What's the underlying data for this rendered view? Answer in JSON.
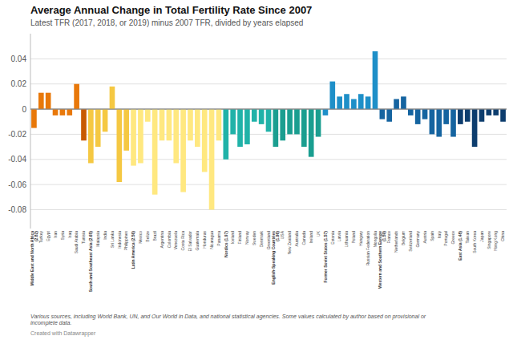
{
  "chart_data": {
    "type": "bar",
    "title": "Average Annual Change in Total Fertility Rate Since 2007",
    "subtitle": "Latest TFR (2017, 2018, or 2019) minus 2007 TFR, divided by years elapsed",
    "annotations": [
      "Various sources, including World Bank, UN, and Our World in Data, and national statistical agencies. Some values calculated by author based on provisional or\nincomplete data.",
      "Created with Datawrapper"
    ],
    "categories": [
      "Middle East and North Africa\n(2.82)",
      "Turkey",
      "Egypt",
      "Iran",
      "Syria",
      "Iraq",
      "Saudi Arabia",
      "Tunisia",
      "South and Southeast Asia (2.65)",
      "Malaysia",
      "India",
      "Sri Lanka",
      "Indonesia",
      "Philippines",
      "Latin America (2.56)",
      "Mexico",
      "Belize",
      "Brazil",
      "Argentina",
      "Colombia",
      "Venezuela",
      "Costa Rica",
      "El Salvador",
      "Guatemala",
      "Honduras",
      "Nicaragua",
      "Panama",
      "Nordics (1.97)",
      "Iceland",
      "Finland",
      "Norway",
      "Sweden",
      "Denmark",
      "Greenland",
      "English-Speaking Countries\n(1.96)",
      "USA",
      "New Zealand",
      "Australia",
      "Canada",
      "Ireland",
      "UK",
      "Former Soviet States (1.57)",
      "Estonia",
      "Latvia",
      "Lithuania",
      "Poland",
      "Hungary",
      "Russian Federation",
      "Mongolia",
      "Western and Southern Europe\n(1.59)",
      "France",
      "Netherlands",
      "Belgium",
      "Switzerland",
      "Germany",
      "Austria",
      "Spain",
      "Italy",
      "Portugal",
      "Greece",
      "East Asia (1.48)",
      "Taiwan",
      "South Korea",
      "Japan",
      "Singapore",
      "Hong Kong",
      "China"
    ],
    "values": [
      -0.015,
      0.013,
      0.013,
      -0.005,
      -0.005,
      -0.005,
      0.02,
      -0.025,
      -0.043,
      -0.03,
      -0.018,
      0.018,
      -0.058,
      -0.033,
      -0.045,
      -0.043,
      -0.01,
      -0.068,
      -0.025,
      -0.025,
      -0.043,
      -0.066,
      -0.025,
      -0.03,
      -0.05,
      -0.08,
      -0.025,
      -0.04,
      -0.02,
      -0.03,
      -0.028,
      -0.01,
      -0.012,
      -0.018,
      -0.03,
      -0.025,
      -0.02,
      -0.02,
      -0.03,
      -0.038,
      -0.022,
      -0.005,
      0.022,
      0.01,
      0.012,
      0.008,
      0.012,
      0.01,
      0.046,
      -0.008,
      -0.01,
      0.008,
      0.01,
      -0.005,
      -0.012,
      -0.008,
      -0.02,
      -0.022,
      -0.012,
      -0.022,
      -0.012,
      -0.01,
      -0.03,
      -0.01,
      -0.005,
      -0.005,
      -0.01
    ],
    "colors": [
      "#e8780a",
      "#e8780a",
      "#e8780a",
      "#e8780a",
      "#e8780a",
      "#e8780a",
      "#e8780a",
      "#c85a00",
      "#f5c842",
      "#f5c842",
      "#f5c842",
      "#f5c842",
      "#f5c842",
      "#f5c842",
      "#ffe880",
      "#ffe880",
      "#ffe880",
      "#ffe880",
      "#ffe880",
      "#ffe880",
      "#ffe880",
      "#ffe880",
      "#ffe880",
      "#ffe880",
      "#ffe880",
      "#ffe880",
      "#ffe880",
      "#20b2a8",
      "#20b2a8",
      "#20b2a8",
      "#20b2a8",
      "#20b2a8",
      "#20b2a8",
      "#20b2a8",
      "#1a9e90",
      "#1a9e90",
      "#1a9e90",
      "#1a9e90",
      "#1a9e90",
      "#1a9e90",
      "#1a9e90",
      "#1e8fc8",
      "#1e8fc8",
      "#1e8fc8",
      "#1e8fc8",
      "#1e8fc8",
      "#1e8fc8",
      "#1e8fc8",
      "#1e8fc8",
      "#1564a0",
      "#1564a0",
      "#1564a0",
      "#1564a0",
      "#1564a0",
      "#1564a0",
      "#1564a0",
      "#1564a0",
      "#1564a0",
      "#1564a0",
      "#1564a0",
      "#0d3d6e",
      "#0d3d6e",
      "#0d3d6e",
      "#0d3d6e",
      "#0d3d6e",
      "#0d3d6e",
      "#0d3d6e"
    ],
    "ylim": [
      -0.095,
      0.06
    ],
    "yticks": [
      -0.08,
      -0.06,
      -0.04,
      -0.02,
      0,
      0.02,
      0.04
    ],
    "grid": true
  }
}
